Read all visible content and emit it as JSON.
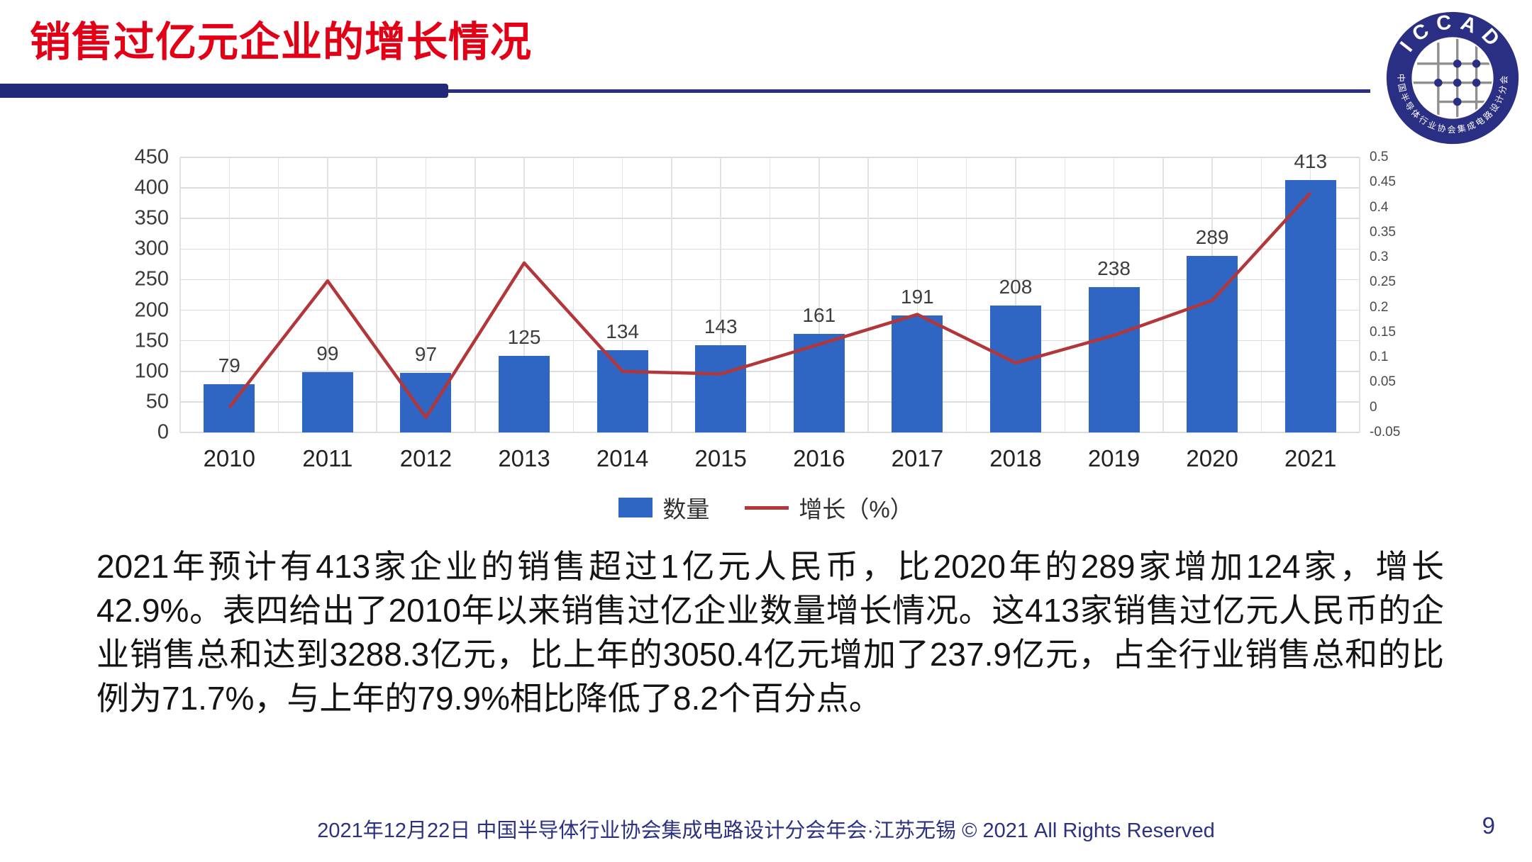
{
  "slide": {
    "title": "销售过亿元企业的增长情况",
    "body_paragraph": "2021年预计有413家企业的销售超过1亿元人民币，比2020年的289家增加124家，增长42.9%。表四给出了2010年以来销售过亿企业数量增长情况。这413家销售过亿元人民币的企业销售总和达到3288.3亿元，比上年的3050.4亿元增加了237.9亿元，占全行业销售总和的比例为71.7%，与上年的79.9%相比降低了8.2个百分点。",
    "footer_text": "2021年12月22日 中国半导体行业协会集成电路设计分会年会·江苏无锡 © 2021 All Rights Reserved",
    "page_number": "9"
  },
  "logo": {
    "arc_top": "ICCAD",
    "arc_bottom": "中国半导体行业协会集成电路设计分会"
  },
  "colors": {
    "title_red": "#e30016",
    "header_navy": "#232879",
    "bar_blue": "#2f66c3",
    "line_red": "#b2363a",
    "grid_gray": "#dcdcdc",
    "footer_navy": "#2c3282"
  },
  "chart_data": {
    "type": "combo-bar-line",
    "title": "",
    "xlabel": "",
    "ylabel_left": "",
    "ylabel_right": "",
    "grid": true,
    "legend_position": "bottom-center",
    "categories": [
      "2010",
      "2011",
      "2012",
      "2013",
      "2014",
      "2015",
      "2016",
      "2017",
      "2018",
      "2019",
      "2020",
      "2021"
    ],
    "series": [
      {
        "name": "数量",
        "chart": "bar",
        "axis": "left",
        "color": "#2f66c3",
        "values": [
          79,
          99,
          97,
          125,
          134,
          143,
          161,
          191,
          208,
          238,
          289,
          413
        ],
        "data_labels": [
          "79",
          "99",
          "97",
          "125",
          "134",
          "143",
          "161",
          "191",
          "208",
          "238",
          "289",
          "413"
        ]
      },
      {
        "name": "增长（%）",
        "chart": "line",
        "axis": "right",
        "color": "#b2363a",
        "values": [
          0.0,
          0.253,
          -0.02,
          0.289,
          0.072,
          0.067,
          0.126,
          0.186,
          0.089,
          0.144,
          0.214,
          0.429
        ]
      }
    ],
    "left_axis": {
      "min": 0,
      "max": 450,
      "step": 50,
      "ticks": [
        "450",
        "400",
        "350",
        "300",
        "250",
        "200",
        "150",
        "100",
        "50",
        "0"
      ]
    },
    "right_axis": {
      "min": -0.05,
      "max": 0.5,
      "step": 0.05,
      "ticks": [
        "0.5",
        "0.45",
        "0.4",
        "0.35",
        "0.3",
        "0.25",
        "0.2",
        "0.15",
        "0.1",
        "0.05",
        "0",
        "-0.05"
      ]
    },
    "gridlines": {
      "horizontal_intervals": 9,
      "vertical_intervals": 24
    }
  }
}
